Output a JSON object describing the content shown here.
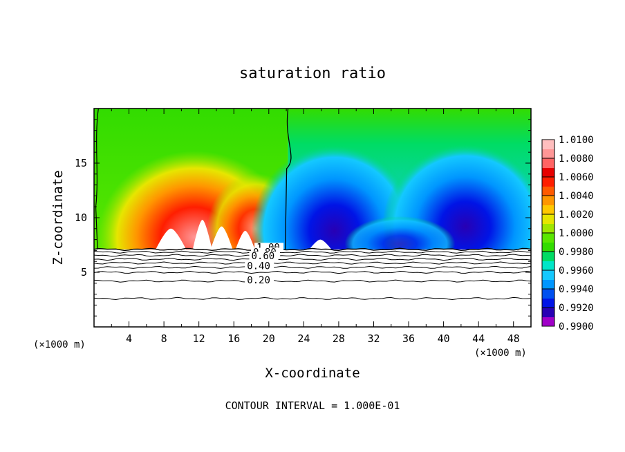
{
  "chart_data": {
    "type": "heatmap",
    "title": "saturation ratio",
    "xlabel": "X-coordinate",
    "ylabel": "Z-coordinate",
    "x_unit_left": "(×1000 m)",
    "x_unit_right": "(×1000 m)",
    "footer": "CONTOUR INTERVAL = 1.000E-01",
    "xlim": [
      0,
      50
    ],
    "ylim": [
      0,
      20
    ],
    "xticks": [
      {
        "v": 4,
        "label": "4"
      },
      {
        "v": 8,
        "label": "8"
      },
      {
        "v": 12,
        "label": "12"
      },
      {
        "v": 16,
        "label": "16"
      },
      {
        "v": 20,
        "label": "20"
      },
      {
        "v": 24,
        "label": "24"
      },
      {
        "v": 28,
        "label": "28"
      },
      {
        "v": 32,
        "label": "32"
      },
      {
        "v": 36,
        "label": "36"
      },
      {
        "v": 40,
        "label": "40"
      },
      {
        "v": 44,
        "label": "44"
      },
      {
        "v": 48,
        "label": "48"
      }
    ],
    "yticks": [
      {
        "v": 5,
        "label": "5"
      },
      {
        "v": 10,
        "label": "10"
      },
      {
        "v": 15,
        "label": "15"
      }
    ],
    "colorbar": {
      "min": 0.99,
      "max": 1.01,
      "labels": [
        "1.0100",
        "1.0080",
        "1.0060",
        "1.0040",
        "1.0020",
        "1.0000",
        "0.9980",
        "0.9960",
        "0.9940",
        "0.9920",
        "0.9900"
      ],
      "colors": [
        "#a000c8",
        "#2800b4",
        "#0014e6",
        "#0050f0",
        "#0096ff",
        "#14c8ff",
        "#00e6c8",
        "#00dc64",
        "#32dc00",
        "#5ae600",
        "#a0e600",
        "#e6e600",
        "#ffc800",
        "#ff9600",
        "#ff5a00",
        "#ff1e00",
        "#e60000",
        "#ff6464",
        "#ff9696",
        "#ffbebe"
      ]
    },
    "contour_labels": [
      {
        "x": 18.6,
        "y": 7.0,
        "text": "1.00"
      },
      {
        "x": 18.2,
        "y": 6.55,
        "text": "0.80"
      },
      {
        "x": 18.0,
        "y": 6.2,
        "text": "0.60"
      },
      {
        "x": 17.5,
        "y": 5.3,
        "text": "0.40"
      },
      {
        "x": 17.5,
        "y": 4.0,
        "text": "0.20"
      }
    ],
    "contour_lines": [
      {
        "level": 1.0,
        "y": 7.1
      },
      {
        "level": 0.9,
        "y": 6.85
      },
      {
        "level": 0.8,
        "y": 6.55
      },
      {
        "level": 0.7,
        "y": 6.2
      },
      {
        "level": 0.6,
        "y": 5.85
      },
      {
        "level": 0.5,
        "y": 5.45
      },
      {
        "level": 0.4,
        "y": 5.0
      },
      {
        "level": 0.2,
        "y": 4.2
      },
      {
        "level": 0.1,
        "y": 2.6
      }
    ]
  }
}
